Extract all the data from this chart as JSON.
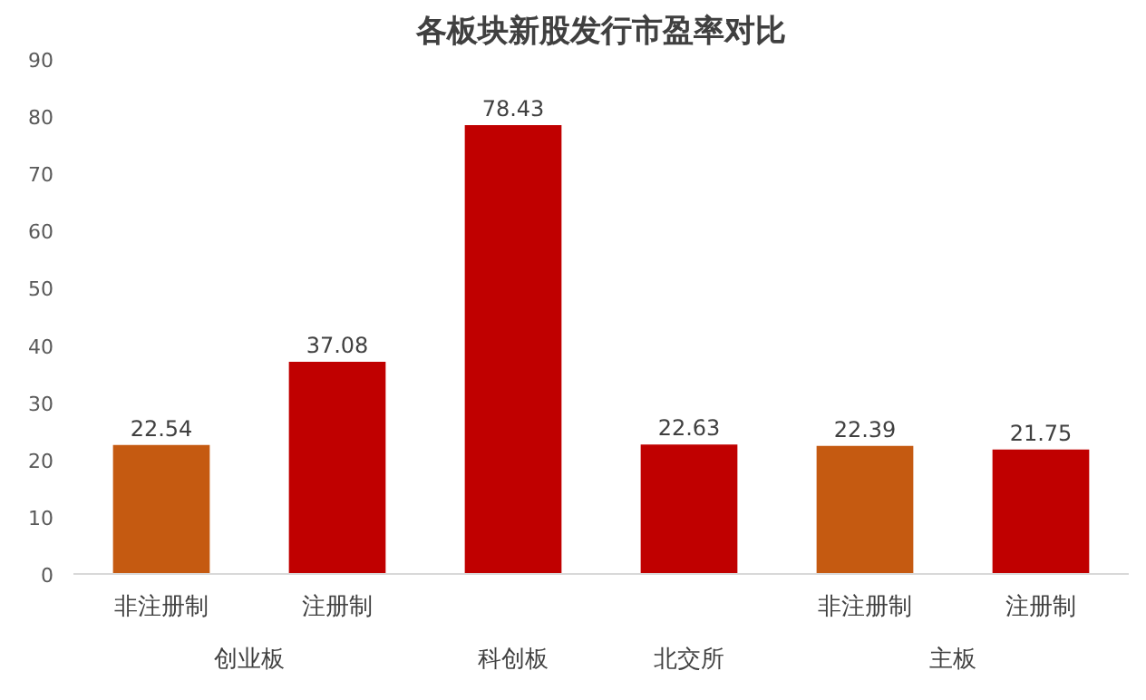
{
  "chart_data": {
    "type": "bar",
    "title": "各板块新股发行市盈率对比",
    "categories": [
      "非注册制",
      "注册制",
      null,
      null,
      "非注册制",
      "注册制"
    ],
    "annotations": [
      "创业板",
      "科创板",
      "北交所",
      "主板"
    ],
    "values": [
      22.54,
      37.08,
      78.43,
      22.63,
      22.39,
      21.75
    ],
    "colors": [
      "#c55a11",
      "#c00000",
      "#c00000",
      "#c00000",
      "#c55a11",
      "#c00000"
    ],
    "ylim": [
      0,
      90
    ],
    "yticks": [
      0,
      10,
      20,
      30,
      40,
      50,
      60,
      70,
      80,
      90
    ],
    "data_labels": true,
    "grid": false
  }
}
